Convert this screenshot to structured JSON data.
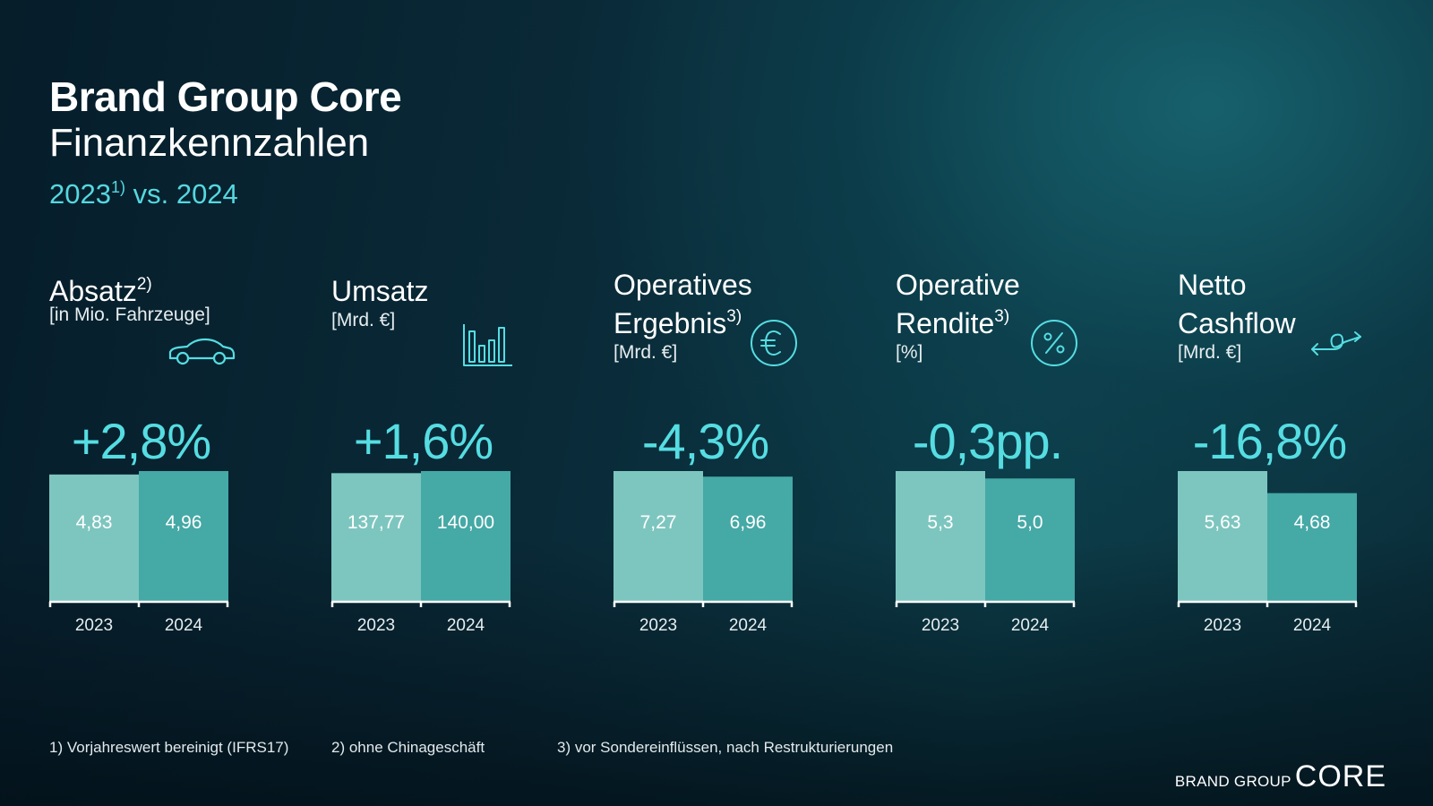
{
  "header": {
    "title": "Brand Group Core",
    "subtitle": "Finanzkennzahlen",
    "years_prefix": "2023",
    "years_sup": "1)",
    "years_suffix": " vs. 2024"
  },
  "colors": {
    "bar_2023": "#7dc6bf",
    "bar_2024": "#45a9a6",
    "accent": "#55dde2"
  },
  "icons": [
    "car-icon",
    "bar-chart-icon",
    "euro-icon",
    "percent-icon",
    "cashflow-arrows-icon"
  ],
  "chart_data": [
    {
      "type": "bar",
      "title": "Absatz",
      "title_sup": "2)",
      "unit": "[in Mio. Fahrzeuge]",
      "change": "+2,8%",
      "categories": [
        "2023",
        "2024"
      ],
      "values": [
        4.83,
        4.96
      ],
      "labels": [
        "4,83",
        "4,96"
      ]
    },
    {
      "type": "bar",
      "title": "Umsatz",
      "title_sup": "",
      "unit": "[Mrd. €]",
      "change": "+1,6%",
      "categories": [
        "2023",
        "2024"
      ],
      "values": [
        137.77,
        140.0
      ],
      "labels": [
        "137,77",
        "140,00"
      ]
    },
    {
      "type": "bar",
      "title": "Operatives\nErgebnis",
      "title_sup": "3)",
      "unit": "[Mrd. €]",
      "change": "-4,3%",
      "categories": [
        "2023",
        "2024"
      ],
      "values": [
        7.27,
        6.96
      ],
      "labels": [
        "7,27",
        "6,96"
      ]
    },
    {
      "type": "bar",
      "title": "Operative\nRendite",
      "title_sup": "3)",
      "unit": "[%]",
      "change": "-0,3pp.",
      "categories": [
        "2023",
        "2024"
      ],
      "values": [
        5.3,
        5.0
      ],
      "labels": [
        "5,3",
        "5,0"
      ]
    },
    {
      "type": "bar",
      "title": "Netto\nCashflow",
      "title_sup": "",
      "unit": "[Mrd. €]",
      "change": "-16,8%",
      "categories": [
        "2023",
        "2024"
      ],
      "values": [
        5.63,
        4.68
      ],
      "labels": [
        "5,63",
        "4,68"
      ]
    }
  ],
  "footnotes": [
    "1) Vorjahreswert bereinigt (IFRS17)",
    "2) ohne Chinageschäft",
    "3) vor Sondereinflüssen, nach Restrukturierungen"
  ],
  "brand": {
    "small": "BRAND GROUP",
    "big": "CORE"
  }
}
